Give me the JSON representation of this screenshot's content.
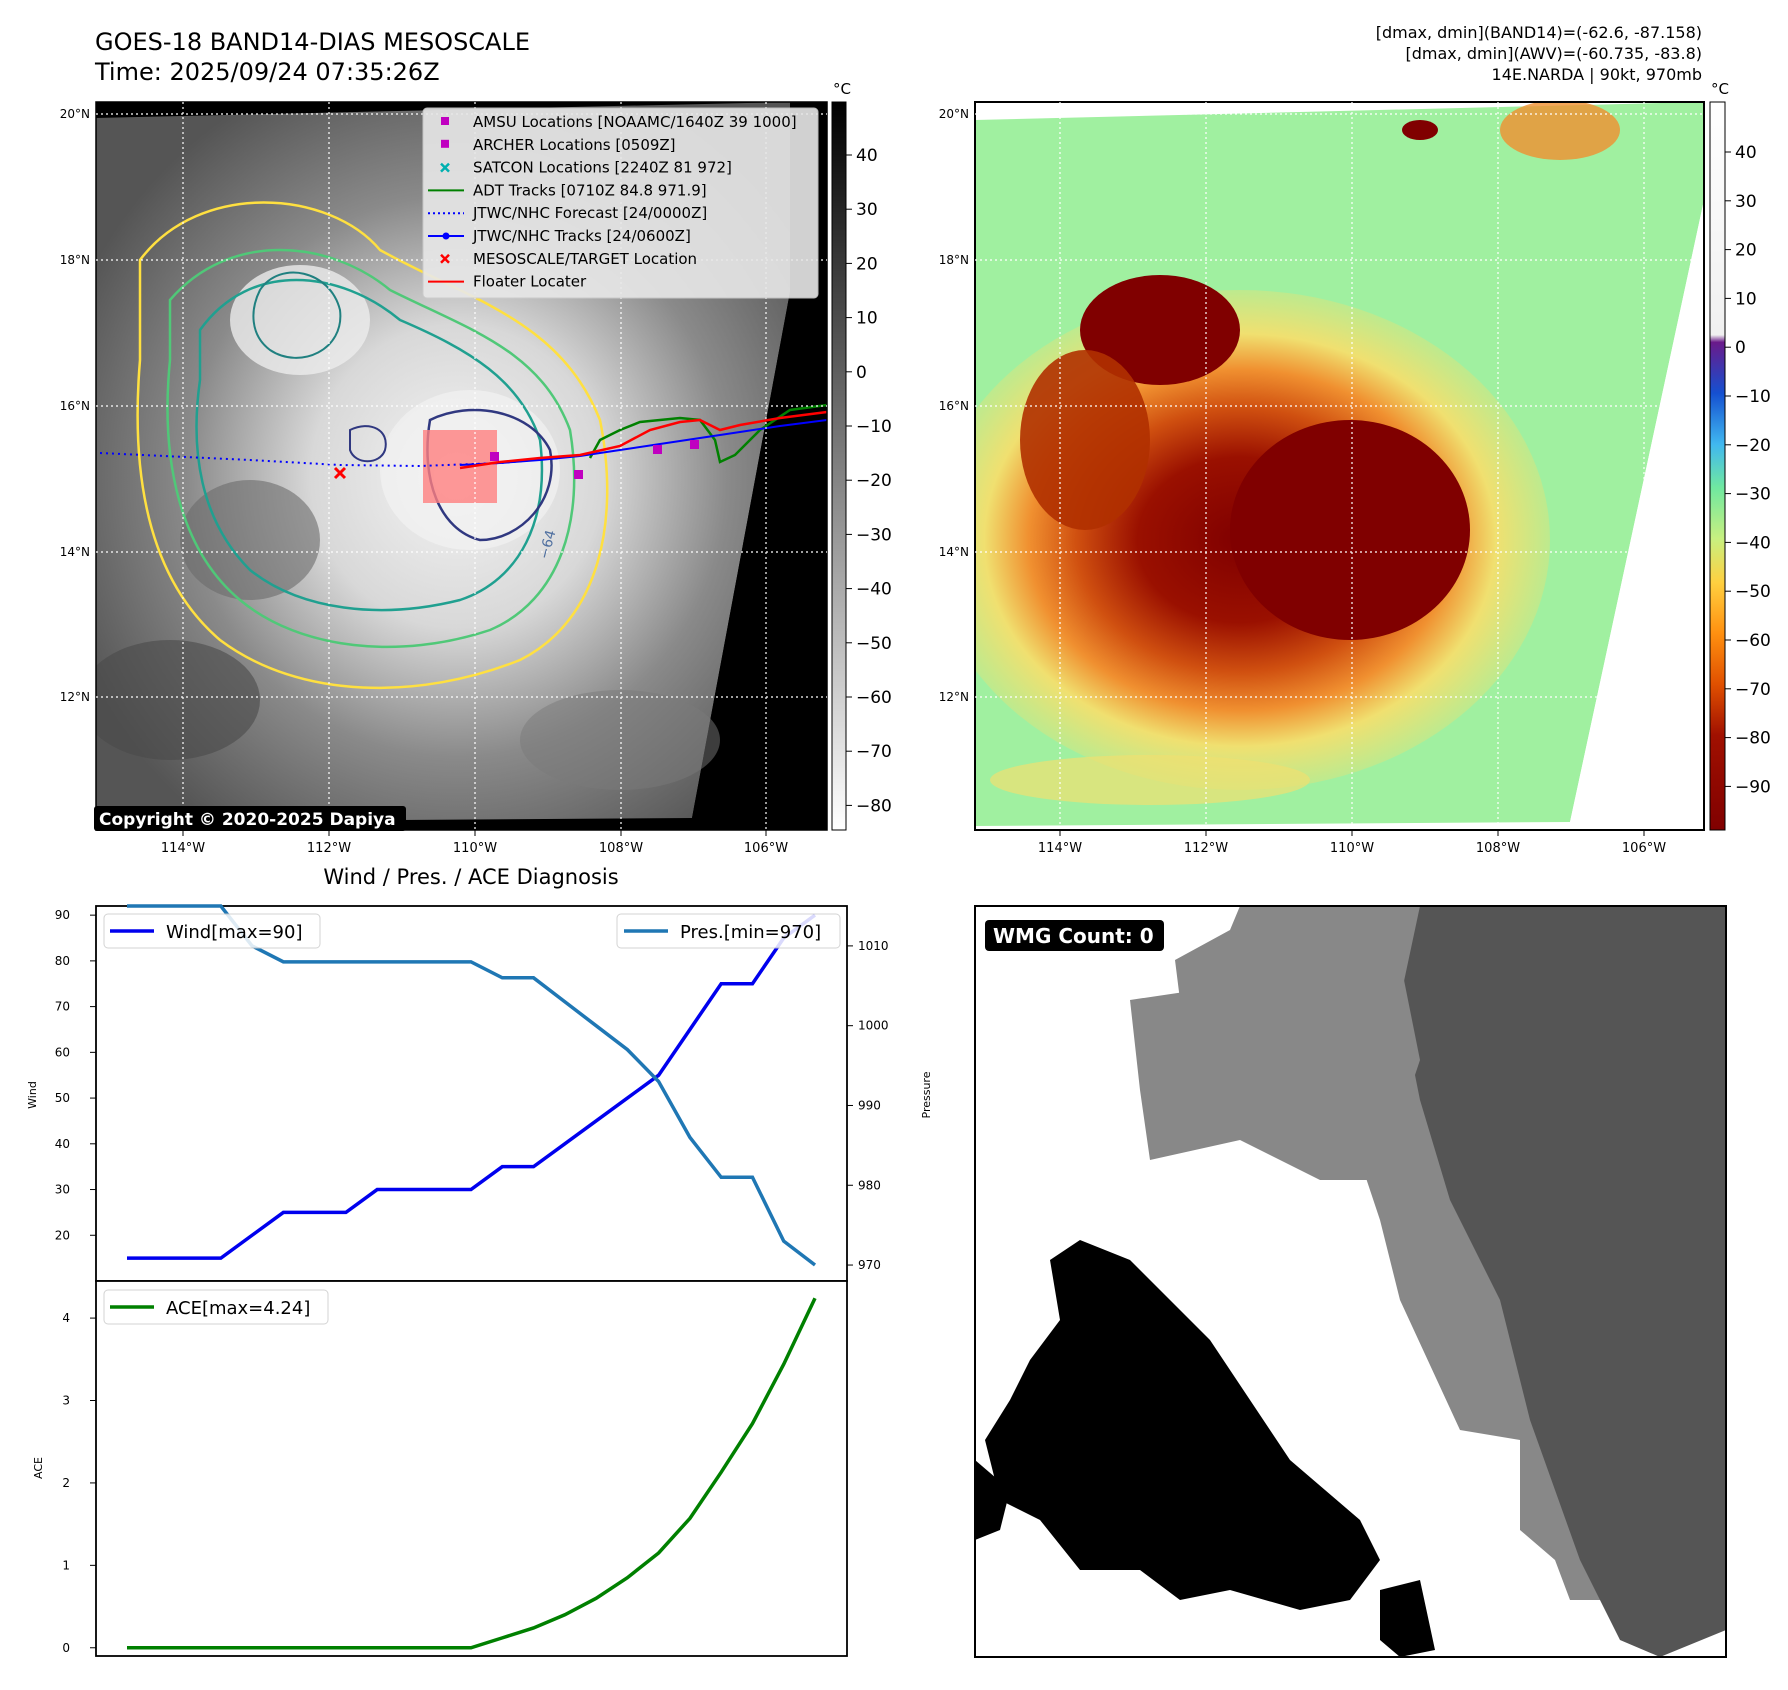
{
  "header": {
    "title": "GOES-18 BAND14-DIAS MESOSCALE",
    "time": "Time: 2025/09/24 07:35:26Z",
    "info_line1": "[dmax, dmin](BAND14)=(-62.6, -87.158)",
    "info_line2": "[dmax, dmin](AWV)=(-60.735, -83.8)",
    "info_line3": "14E.NARDA | 90kt, 970mb"
  },
  "colors": {
    "wind": "#0000ee",
    "pressure": "#1f77b4",
    "ace": "#008000",
    "amsu": "#c000c0",
    "satcon": "#00b0b0",
    "adt": "#008000",
    "forecast": "#0000ff",
    "tracks": "#0000ff",
    "target": "#ff0000",
    "floater": "#ff0000"
  },
  "map_common": {
    "lat_ticks": [
      "20°N",
      "18°N",
      "16°N",
      "14°N",
      "12°N"
    ],
    "lon_ticks": [
      "114°W",
      "112°W",
      "110°W",
      "108°W",
      "106°W"
    ]
  },
  "map_left": {
    "cbar_unit": "°C",
    "cbar_ticks": [
      "40",
      "30",
      "20",
      "10",
      "0",
      "−10",
      "−20",
      "−30",
      "−40",
      "−50",
      "−60",
      "−70",
      "−80"
    ],
    "contour_label": "−64",
    "copyright": "Copyright © 2020-2025 Dapiya",
    "legend": [
      {
        "label": "AMSU Locations [NOAAMC/1640Z 39 1000]",
        "icon": "square-marker"
      },
      {
        "label": "ARCHER Locations [0509Z]",
        "icon": "square-marker"
      },
      {
        "label": "SATCON Locations [2240Z 81 972]",
        "icon": "x-marker"
      },
      {
        "label": "ADT Tracks [0710Z 84.8 971.9]",
        "icon": "solid-line"
      },
      {
        "label": "JTWC/NHC Forecast [24/0000Z]",
        "icon": "dotted-line"
      },
      {
        "label": "JTWC/NHC Tracks [24/0600Z]",
        "icon": "line-dot"
      },
      {
        "label": "MESOSCALE/TARGET Location",
        "icon": "x-marker"
      },
      {
        "label": "Floater Locater",
        "icon": "solid-line"
      }
    ]
  },
  "map_right": {
    "cbar_unit": "°C",
    "cbar_ticks": [
      "40",
      "30",
      "20",
      "10",
      "0",
      "−10",
      "−20",
      "−30",
      "−40",
      "−50",
      "−60",
      "−70",
      "−80",
      "−90"
    ]
  },
  "wmg": {
    "badge": "WMG Count: 0"
  },
  "chart_data": [
    {
      "type": "line",
      "title": "Wind / Pres. / ACE Diagnosis",
      "ylabel": "Wind",
      "y2label": "Pressure",
      "ylim": [
        10,
        92
      ],
      "y2lim": [
        968,
        1015
      ],
      "yticks": [
        20,
        30,
        40,
        50,
        60,
        70,
        80,
        90
      ],
      "y2ticks": [
        970,
        980,
        990,
        1000,
        1010
      ],
      "series": [
        {
          "name": "Wind[max=90]",
          "axis": "left",
          "values": [
            15,
            15,
            15,
            15,
            20,
            25,
            25,
            25,
            30,
            30,
            30,
            30,
            35,
            35,
            40,
            45,
            50,
            55,
            65,
            75,
            75,
            85,
            90
          ]
        },
        {
          "name": "Pres.[min=970]",
          "axis": "right",
          "values": [
            1015,
            1015,
            1015,
            1015,
            1010,
            1008,
            1008,
            1008,
            1008,
            1008,
            1008,
            1008,
            1006,
            1006,
            1003,
            1000,
            997,
            993,
            986,
            981,
            981,
            973,
            970
          ]
        }
      ]
    },
    {
      "type": "line",
      "ylabel": "ACE",
      "ylim": [
        -0.1,
        4.45
      ],
      "yticks": [
        0,
        1,
        2,
        3,
        4
      ],
      "series": [
        {
          "name": "ACE[max=4.24]",
          "values": [
            0,
            0,
            0,
            0,
            0,
            0,
            0,
            0,
            0,
            0,
            0,
            0,
            0.12,
            0.24,
            0.4,
            0.6,
            0.85,
            1.15,
            1.57,
            2.13,
            2.72,
            3.44,
            4.24
          ]
        }
      ]
    }
  ]
}
